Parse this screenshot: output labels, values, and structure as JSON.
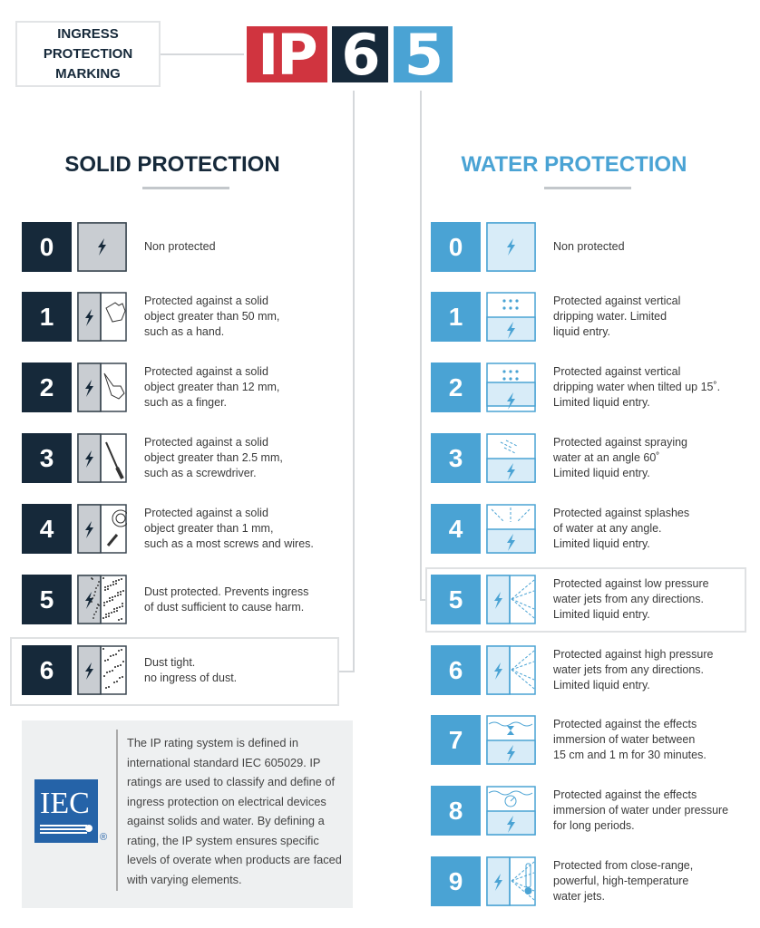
{
  "header": {
    "marking_label": "INGRESS\nPROTECTION\nMARKING",
    "logo": {
      "ip": "IP",
      "solid_digit": "6",
      "water_digit": "5"
    }
  },
  "colors": {
    "red": "#d0343f",
    "dark": "#16293a",
    "blue": "#4aa3d4",
    "solid_icon_bg": "#c9cdd2",
    "water_icon_bg": "#d8ecf8"
  },
  "solid": {
    "title": "SOLID PROTECTION",
    "highlighted": "6",
    "rows": [
      {
        "level": "0",
        "icon": "bolt-icon",
        "text": "Non protected"
      },
      {
        "level": "1",
        "icon": "hand-icon",
        "text": "Protected against a solid\nobject greater than 50 mm,\nsuch as a hand."
      },
      {
        "level": "2",
        "icon": "finger-icon",
        "text": "Protected against a solid\nobject greater than 12 mm,\nsuch as a finger."
      },
      {
        "level": "3",
        "icon": "screwdriver-icon",
        "text": "Protected against a solid\nobject greater than 2.5 mm,\nsuch as a screwdriver."
      },
      {
        "level": "4",
        "icon": "wire-screw-icon",
        "text": "Protected against a solid\nobject greater than 1 mm,\nsuch as a most screws and wires."
      },
      {
        "level": "5",
        "icon": "dust-icon",
        "text": "Dust protected. Prevents ingress\nof dust sufficient to cause harm."
      },
      {
        "level": "6",
        "icon": "dust-tight-icon",
        "text": "Dust tight.\nno ingress of dust."
      }
    ]
  },
  "water": {
    "title": "WATER PROTECTION",
    "highlighted": "5",
    "rows": [
      {
        "level": "0",
        "icon": "bolt-icon",
        "text": "Non protected"
      },
      {
        "level": "1",
        "icon": "vertical-drip-icon",
        "text": "Protected against vertical\ndripping water. Limited\nliquid entry."
      },
      {
        "level": "2",
        "icon": "tilted-drip-icon",
        "text": "Protected against vertical\ndripping water when tilted up 15˚.\nLimited liquid entry."
      },
      {
        "level": "3",
        "icon": "spray-icon",
        "text": "Protected against spraying\nwater at an angle 60˚\nLimited liquid entry."
      },
      {
        "level": "4",
        "icon": "splash-icon",
        "text": "Protected against splashes\nof water at any angle.\nLimited liquid entry."
      },
      {
        "level": "5",
        "icon": "low-pressure-jet-icon",
        "text": "Protected against low pressure\nwater jets from any directions.\nLimited liquid entry."
      },
      {
        "level": "6",
        "icon": "high-pressure-jet-icon",
        "text": "Protected against high pressure\nwater jets from any directions.\nLimited liquid entry."
      },
      {
        "level": "7",
        "icon": "immersion-icon",
        "text": "Protected against the effects\nimmersion of water  between\n15 cm and 1 m for 30 minutes."
      },
      {
        "level": "8",
        "icon": "pressure-immersion-icon",
        "text": "Protected against the effects\nimmersion of water under pressure\nfor long periods."
      },
      {
        "level": "9",
        "icon": "hot-jet-icon",
        "text": "Protected from close-range,\npowerful, high-temperature\nwater jets."
      }
    ]
  },
  "iec": {
    "logo_text": "IEC",
    "registered": "®",
    "text": "The IP rating system is defined in international standard IEC 605029. IP ratings are used to classify and define of ingress protection on electrical devices against solids and water. By defining a rating, the IP system ensures specific levels of overate when products are faced with varying elements."
  }
}
